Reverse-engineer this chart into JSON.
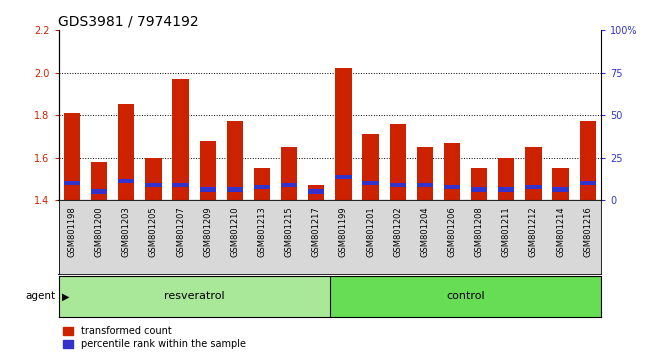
{
  "title": "GDS3981 / 7974192",
  "samples": [
    "GSM801198",
    "GSM801200",
    "GSM801203",
    "GSM801205",
    "GSM801207",
    "GSM801209",
    "GSM801210",
    "GSM801213",
    "GSM801215",
    "GSM801217",
    "GSM801199",
    "GSM801201",
    "GSM801202",
    "GSM801204",
    "GSM801206",
    "GSM801208",
    "GSM801211",
    "GSM801212",
    "GSM801214",
    "GSM801216"
  ],
  "red_heights": [
    1.81,
    1.58,
    1.85,
    1.6,
    1.97,
    1.68,
    1.77,
    1.55,
    1.65,
    1.47,
    2.02,
    1.71,
    1.76,
    1.65,
    1.67,
    1.55,
    1.6,
    1.65,
    1.55,
    1.77
  ],
  "blue_positions": [
    1.47,
    1.43,
    1.48,
    1.46,
    1.46,
    1.44,
    1.44,
    1.45,
    1.46,
    1.43,
    1.5,
    1.47,
    1.46,
    1.46,
    1.45,
    1.44,
    1.44,
    1.45,
    1.44,
    1.47
  ],
  "blue_heights": [
    0.02,
    0.02,
    0.02,
    0.02,
    0.02,
    0.02,
    0.02,
    0.02,
    0.02,
    0.02,
    0.02,
    0.02,
    0.02,
    0.02,
    0.02,
    0.02,
    0.02,
    0.02,
    0.02,
    0.02
  ],
  "resveratrol_count": 10,
  "control_count": 10,
  "ylim_left": [
    1.4,
    2.2
  ],
  "ylim_right": [
    0,
    100
  ],
  "yticks_left": [
    1.4,
    1.6,
    1.8,
    2.0,
    2.2
  ],
  "yticks_right": [
    0,
    25,
    50,
    75,
    100
  ],
  "ytick_labels_right": [
    "0",
    "25",
    "50",
    "75",
    "100%"
  ],
  "grid_vals": [
    1.6,
    1.8,
    2.0
  ],
  "bar_color_red": "#cc2200",
  "bar_color_blue": "#3333cc",
  "bar_width": 0.6,
  "bg_color": "#d8d8d8",
  "plot_bg": "#ffffff",
  "resveratrol_color": "#aae899",
  "control_color": "#66dd55",
  "agent_label": "agent",
  "resveratrol_label": "resveratrol",
  "control_label": "control",
  "legend_red": "transformed count",
  "legend_blue": "percentile rank within the sample",
  "title_fontsize": 10,
  "tick_fontsize": 7,
  "label_fontsize": 8,
  "sample_fontsize": 6
}
